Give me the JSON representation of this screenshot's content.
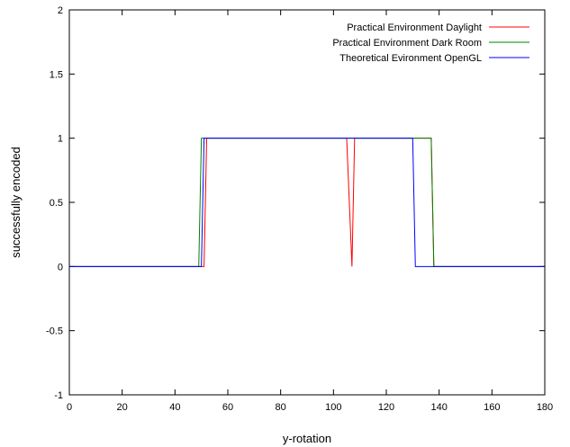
{
  "chart_data": {
    "type": "line",
    "title": "",
    "xlabel": "y-rotation",
    "ylabel": "successfully encoded",
    "xlim": [
      0,
      180
    ],
    "ylim": [
      -1,
      2
    ],
    "xticks": [
      0,
      20,
      40,
      60,
      80,
      100,
      120,
      140,
      160,
      180
    ],
    "yticks": [
      -1,
      -0.5,
      0,
      0.5,
      1,
      1.5,
      2
    ],
    "ytick_labels": [
      "-1",
      "-0.5",
      "0",
      "0.5",
      "1",
      "1.5",
      "2"
    ],
    "grid": false,
    "legend_position": "top-right",
    "series": [
      {
        "name": "Practical Environment Daylight",
        "color": "#ff0000",
        "x": [
          0,
          51,
          52,
          105,
          107,
          108,
          137,
          138,
          180
        ],
        "y": [
          0,
          0,
          1,
          1,
          0,
          1,
          1,
          0,
          0
        ]
      },
      {
        "name": "Practical Environment Dark Room",
        "color": "#008000",
        "x": [
          0,
          49,
          50,
          137,
          138,
          180
        ],
        "y": [
          0,
          0,
          1,
          1,
          0,
          0
        ]
      },
      {
        "name": "Theoretical Evironment OpenGL",
        "color": "#0000ff",
        "x": [
          0,
          50,
          51,
          130,
          131,
          180
        ],
        "y": [
          0,
          0,
          1,
          1,
          0,
          0
        ]
      }
    ]
  }
}
